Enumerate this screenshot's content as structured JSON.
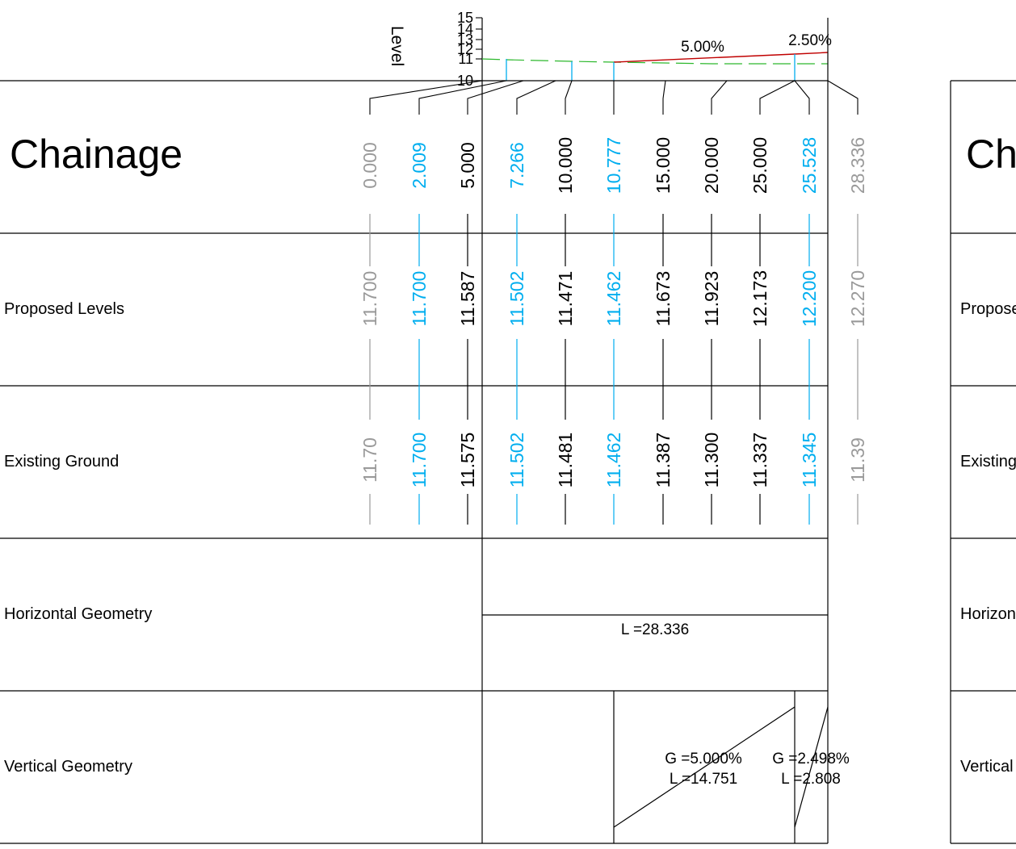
{
  "colors": {
    "line": "#000000",
    "ip": "#00AEEF",
    "endpoint": "#9A9A9A",
    "proposed": "#C00000",
    "existing": "#2DB82D"
  },
  "axis": {
    "label": "Level",
    "ticks": [
      "15",
      "14",
      "13",
      "12",
      "11",
      "10"
    ]
  },
  "grades": [
    "5.00%",
    "2.50%"
  ],
  "rows": {
    "chainage": "Chainage",
    "proposed": "Proposed Levels",
    "existing": "Existing Ground",
    "horizontal": "Horizontal Geometry",
    "vertical": "Vertical Geometry"
  },
  "right_panel": {
    "chainage": "Ch",
    "proposed": "Propose",
    "existing": "Existing",
    "horizontal": "Horizon",
    "vertical": "Vertical"
  },
  "stations": [
    {
      "chainage": "0.000",
      "proposed": "11.700",
      "existing": "11.70",
      "type": "endpoint"
    },
    {
      "chainage": "2.009",
      "proposed": "11.700",
      "existing": "11.700",
      "type": "ip"
    },
    {
      "chainage": "5.000",
      "proposed": "11.587",
      "existing": "11.575",
      "type": "regular"
    },
    {
      "chainage": "7.266",
      "proposed": "11.502",
      "existing": "11.502",
      "type": "ip"
    },
    {
      "chainage": "10.000",
      "proposed": "11.471",
      "existing": "11.481",
      "type": "regular"
    },
    {
      "chainage": "10.777",
      "proposed": "11.462",
      "existing": "11.462",
      "type": "ip"
    },
    {
      "chainage": "15.000",
      "proposed": "11.673",
      "existing": "11.387",
      "type": "regular"
    },
    {
      "chainage": "20.000",
      "proposed": "11.923",
      "existing": "11.300",
      "type": "regular"
    },
    {
      "chainage": "25.000",
      "proposed": "12.173",
      "existing": "11.337",
      "type": "regular"
    },
    {
      "chainage": "25.528",
      "proposed": "12.200",
      "existing": "11.345",
      "type": "ip"
    },
    {
      "chainage": "28.336",
      "proposed": "12.270",
      "existing": "11.39",
      "type": "endpoint"
    }
  ],
  "horizontal_geometry": {
    "length_label": "L =28.336"
  },
  "vertical_geometry": [
    {
      "grade_label": "G =5.000%",
      "length_label": "L =14.751"
    },
    {
      "grade_label": "G =2.498%",
      "length_label": "L =2.808"
    }
  ]
}
